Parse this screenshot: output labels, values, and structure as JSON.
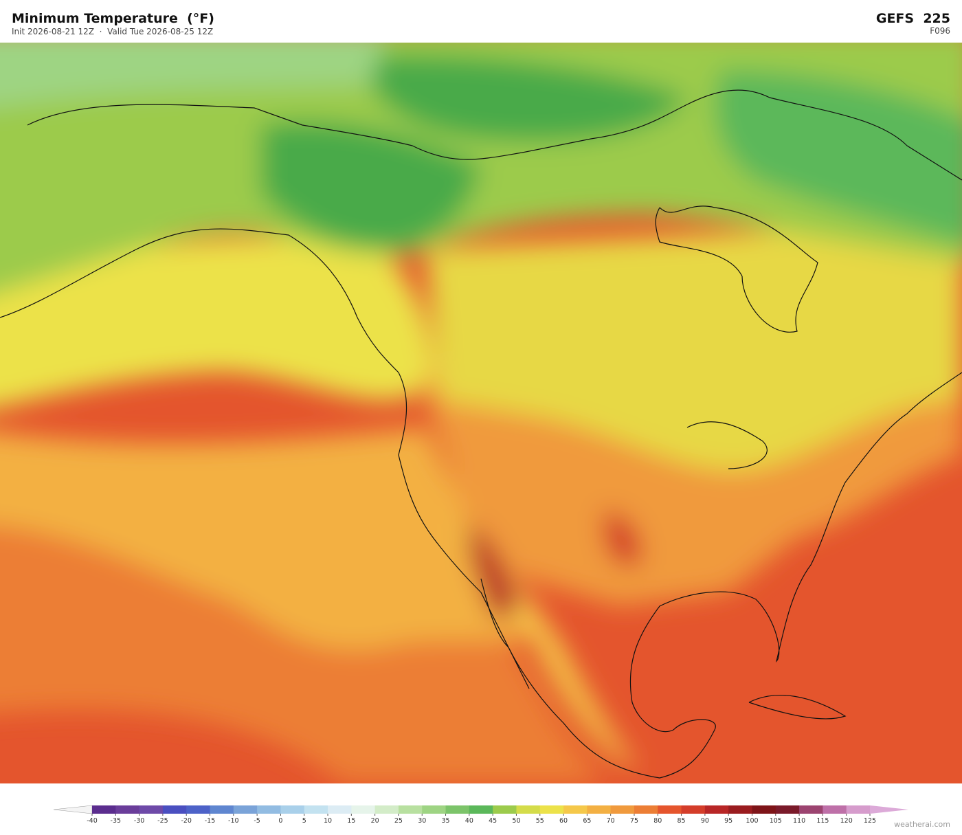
{
  "header": {
    "title": "Minimum Temperature  (°F)",
    "subtitle": "Init 2026-08-21 12Z  ·  Valid Tue 2026-08-25 12Z",
    "model": "GEFS  225",
    "forecast_hour": "F096"
  },
  "colorbar": {
    "ticks": [
      -40,
      -35,
      -30,
      -25,
      -20,
      -15,
      -10,
      -5,
      0,
      5,
      10,
      15,
      20,
      25,
      30,
      35,
      40,
      45,
      50,
      55,
      60,
      65,
      70,
      75,
      80,
      85,
      90,
      95,
      100,
      105,
      110,
      115,
      120,
      125
    ],
    "colors": [
      "#5b2d8e",
      "#6a3d9a",
      "#6e4aa8",
      "#4a4fc0",
      "#4d62c8",
      "#5f86d0",
      "#7aa3d8",
      "#92bce2",
      "#a9d0ea",
      "#c3e2f0",
      "#dcecf4",
      "#e6f4ea",
      "#d3ecc8",
      "#b8e0a0",
      "#9ed483",
      "#7cc46a",
      "#5bb85a",
      "#9ccb4c",
      "#d4dc4a",
      "#ece24a",
      "#f5c84a",
      "#f3b043",
      "#f09a3d",
      "#ec7e35",
      "#e5552d",
      "#d43d2a",
      "#b82626",
      "#9a1c1f",
      "#7e1418",
      "#7a1a2a",
      "#9c4470",
      "#be70a8",
      "#d69ccc"
    ],
    "under_color": "#f4f4f4",
    "over_color": "#dcaad8"
  },
  "footer": {
    "credit": "weatherai.com"
  }
}
